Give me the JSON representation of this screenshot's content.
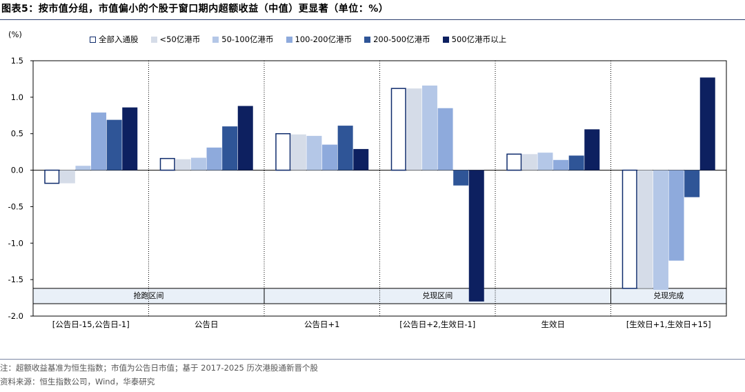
{
  "figure": {
    "title": "图表5：按市值分组，市值偏小的个股于窗口期内超额收益（中值）更显著（单位：%）",
    "note": "注：超额收益基准为恒生指数；市值为公告日市值；基于 2017-2025 历次港股通新晋个股",
    "source": "资料来源：恒生指数公司，Wind，华泰研究"
  },
  "chart_data": {
    "type": "bar",
    "unit_label": "(%)",
    "ylim": [
      -2.0,
      1.5
    ],
    "yticks": [
      "1.5",
      "1.0",
      "0.5",
      "0.0",
      "-0.5",
      "-1.0",
      "-1.5",
      "-2.0"
    ],
    "ytick_values": [
      1.5,
      1.0,
      0.5,
      0.0,
      -0.5,
      -1.0,
      -1.5,
      -2.0
    ],
    "categories": [
      "[公告日-15,公告日-1]",
      "公告日",
      "公告日+1",
      "[公告日+2,生效日-1]",
      "生效日",
      "[生效日+1,生效日+15]"
    ],
    "phases": [
      {
        "label": "抢跑区间",
        "categories": [
          0,
          1
        ]
      },
      {
        "label": "兑现区间",
        "categories": [
          2,
          3,
          4
        ]
      },
      {
        "label": "兑现完成",
        "categories": [
          5
        ]
      }
    ],
    "legend_position": "top",
    "grid": false,
    "series": [
      {
        "name": "全部入通股",
        "color": "#ffffff",
        "stroke": "#0d2a6b",
        "values": [
          -0.18,
          0.16,
          0.5,
          1.12,
          0.22,
          -1.62
        ]
      },
      {
        "name": "<50亿港币",
        "color": "#d5dce8",
        "stroke": "#d5dce8",
        "values": [
          -0.18,
          0.15,
          0.49,
          1.12,
          0.22,
          -1.62
        ]
      },
      {
        "name": "50-100亿港币",
        "color": "#b4c7e7",
        "stroke": "#b4c7e7",
        "values": [
          0.06,
          0.17,
          0.47,
          1.16,
          0.24,
          -1.64
        ]
      },
      {
        "name": "100-200亿港币",
        "color": "#8eaadc",
        "stroke": "#8eaadc",
        "values": [
          0.79,
          0.31,
          0.35,
          0.85,
          0.14,
          -1.24
        ]
      },
      {
        "name": "200-500亿港币",
        "color": "#2f5597",
        "stroke": "#2f5597",
        "values": [
          0.69,
          0.6,
          0.61,
          -0.21,
          0.2,
          -0.37
        ]
      },
      {
        "name": "500亿港币以上",
        "color": "#0d2060",
        "stroke": "#0d2060",
        "values": [
          0.86,
          0.88,
          0.29,
          -1.8,
          0.56,
          1.27
        ]
      }
    ]
  }
}
